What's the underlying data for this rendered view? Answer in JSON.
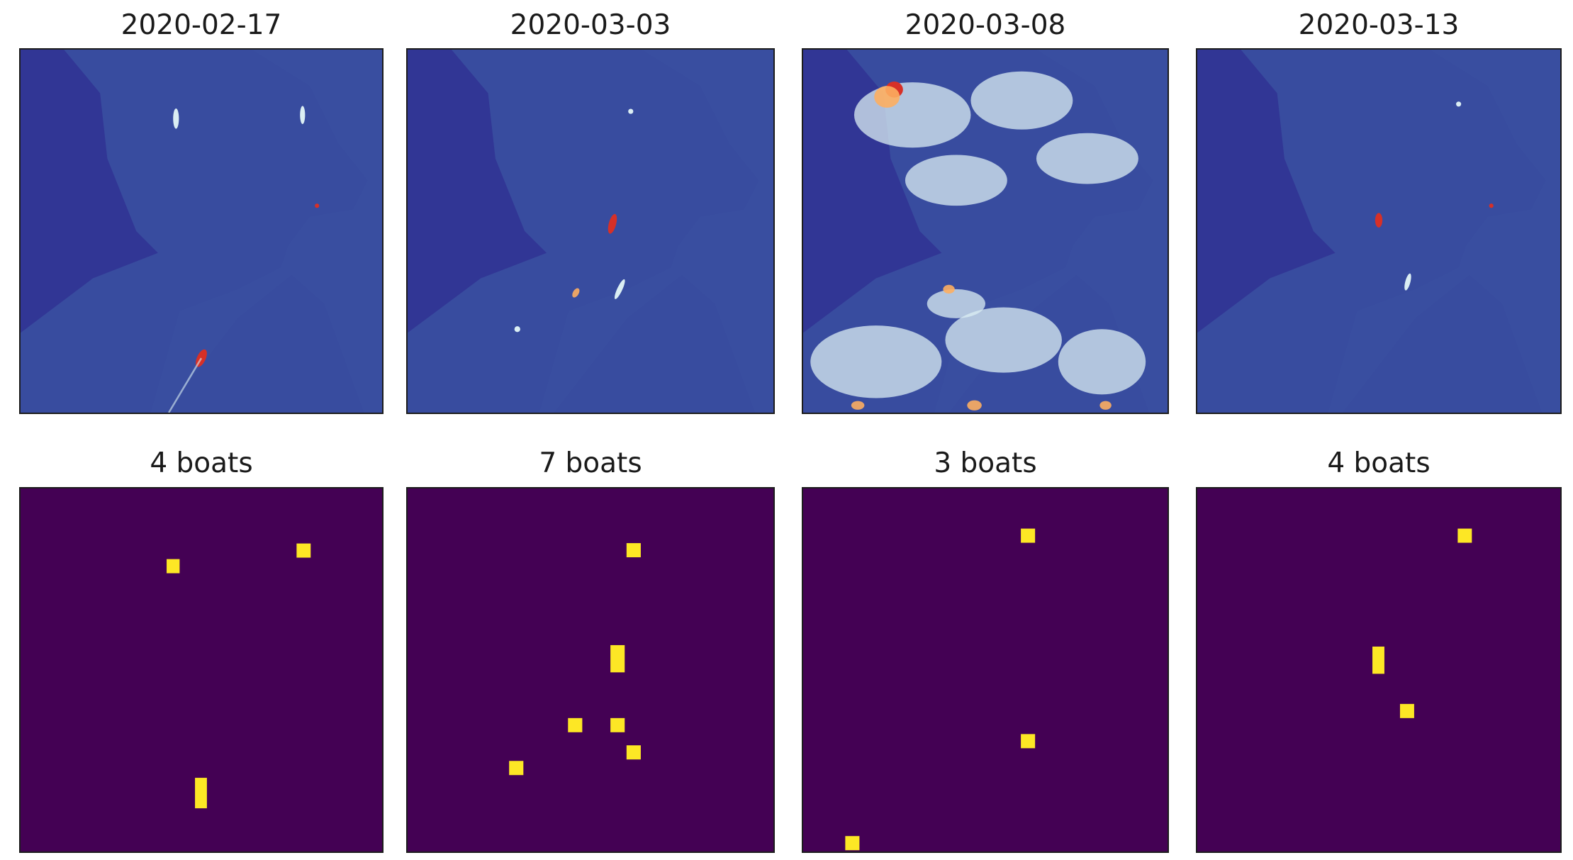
{
  "figure": {
    "colors": {
      "water_background": "#313695",
      "mask_background": "#440154",
      "mask_detection": "#fde725",
      "land": "#3a4fa0",
      "haze": "#dbeef3",
      "hot": "#d73027",
      "medium": "#fdae61"
    }
  },
  "chart_data": [
    {
      "type": "heatmap",
      "title": "2020-02-17",
      "row": "satellite-image",
      "colormap": "RdYlBu_r",
      "grid": false,
      "axes_visible": false,
      "cloudiness": "clear"
    },
    {
      "type": "heatmap",
      "title": "2020-03-03",
      "row": "satellite-image",
      "colormap": "RdYlBu_r",
      "grid": false,
      "axes_visible": false,
      "cloudiness": "clear"
    },
    {
      "type": "heatmap",
      "title": "2020-03-08",
      "row": "satellite-image",
      "colormap": "RdYlBu_r",
      "grid": false,
      "axes_visible": false,
      "cloudiness": "cloudy"
    },
    {
      "type": "heatmap",
      "title": "2020-03-13",
      "row": "satellite-image",
      "colormap": "RdYlBu_r",
      "grid": false,
      "axes_visible": false,
      "cloudiness": "clear"
    },
    {
      "type": "heatmap",
      "title": "4 boats",
      "row": "boat-detection-mask",
      "colormap": "viridis",
      "grid": false,
      "axes_visible": false,
      "boat_count": 4,
      "detections": [
        {
          "x": 0.422,
          "y": 0.214,
          "w": 0.036,
          "h": 0.039
        },
        {
          "x": 0.783,
          "y": 0.171,
          "w": 0.039,
          "h": 0.039
        },
        {
          "x": 0.499,
          "y": 0.839,
          "w": 0.033,
          "h": 0.084
        }
      ]
    },
    {
      "type": "heatmap",
      "title": "7 boats",
      "row": "boat-detection-mask",
      "colormap": "viridis",
      "grid": false,
      "axes_visible": false,
      "boat_count": 7,
      "detections": [
        {
          "x": 0.618,
          "y": 0.17,
          "w": 0.039,
          "h": 0.039
        },
        {
          "x": 0.574,
          "y": 0.469,
          "w": 0.039,
          "h": 0.075
        },
        {
          "x": 0.458,
          "y": 0.652,
          "w": 0.039,
          "h": 0.039
        },
        {
          "x": 0.574,
          "y": 0.652,
          "w": 0.039,
          "h": 0.039
        },
        {
          "x": 0.618,
          "y": 0.727,
          "w": 0.039,
          "h": 0.039
        },
        {
          "x": 0.297,
          "y": 0.77,
          "w": 0.039,
          "h": 0.039
        }
      ]
    },
    {
      "type": "heatmap",
      "title": "3 boats",
      "row": "boat-detection-mask",
      "colormap": "viridis",
      "grid": false,
      "axes_visible": false,
      "boat_count": 3,
      "detections": [
        {
          "x": 0.617,
          "y": 0.13,
          "w": 0.039,
          "h": 0.039
        },
        {
          "x": 0.617,
          "y": 0.696,
          "w": 0.039,
          "h": 0.039
        },
        {
          "x": 0.135,
          "y": 0.977,
          "w": 0.039,
          "h": 0.039
        }
      ]
    },
    {
      "type": "heatmap",
      "title": "4 boats",
      "row": "boat-detection-mask",
      "colormap": "viridis",
      "grid": false,
      "axes_visible": false,
      "boat_count": 4,
      "detections": [
        {
          "x": 0.737,
          "y": 0.13,
          "w": 0.039,
          "h": 0.039
        },
        {
          "x": 0.499,
          "y": 0.473,
          "w": 0.033,
          "h": 0.075
        },
        {
          "x": 0.578,
          "y": 0.613,
          "w": 0.039,
          "h": 0.039
        }
      ]
    }
  ]
}
